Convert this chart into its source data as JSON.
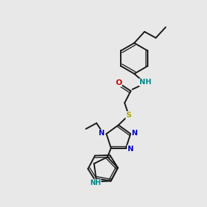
{
  "background_color": "#e8e8e8",
  "bond_color": "#1a1a1a",
  "bond_lw": 1.5,
  "dbl_lw": 1.0,
  "atom_colors": {
    "O": "#cc0000",
    "N": "#0000cc",
    "S": "#aaaa00",
    "NH": "#008888"
  },
  "figsize": [
    3.0,
    3.0
  ],
  "dpi": 100
}
